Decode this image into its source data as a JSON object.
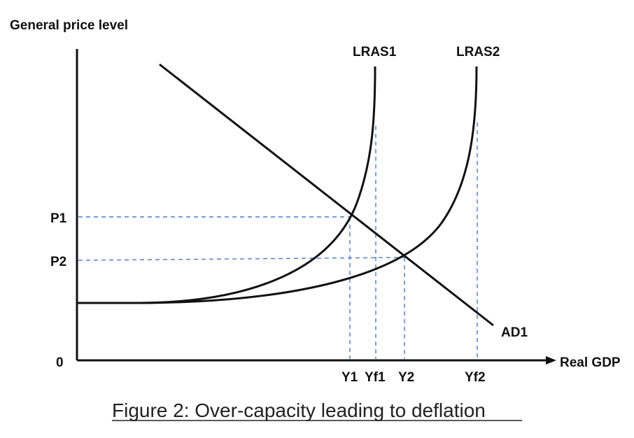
{
  "diagram": {
    "y_axis_label": "General price level",
    "x_axis_label": "Real GDP",
    "origin_label": "0",
    "price_labels": [
      "P1",
      "P2"
    ],
    "output_labels": [
      "Y1",
      "Yf1",
      "Y2",
      "Yf2"
    ],
    "curve_labels": {
      "lras1": "LRAS1",
      "lras2": "LRAS2",
      "ad1": "AD1"
    },
    "caption": "Figure 2: Over-capacity leading to deflation",
    "colors": {
      "curves": "#111111",
      "guides": "#4a7cc9"
    }
  }
}
